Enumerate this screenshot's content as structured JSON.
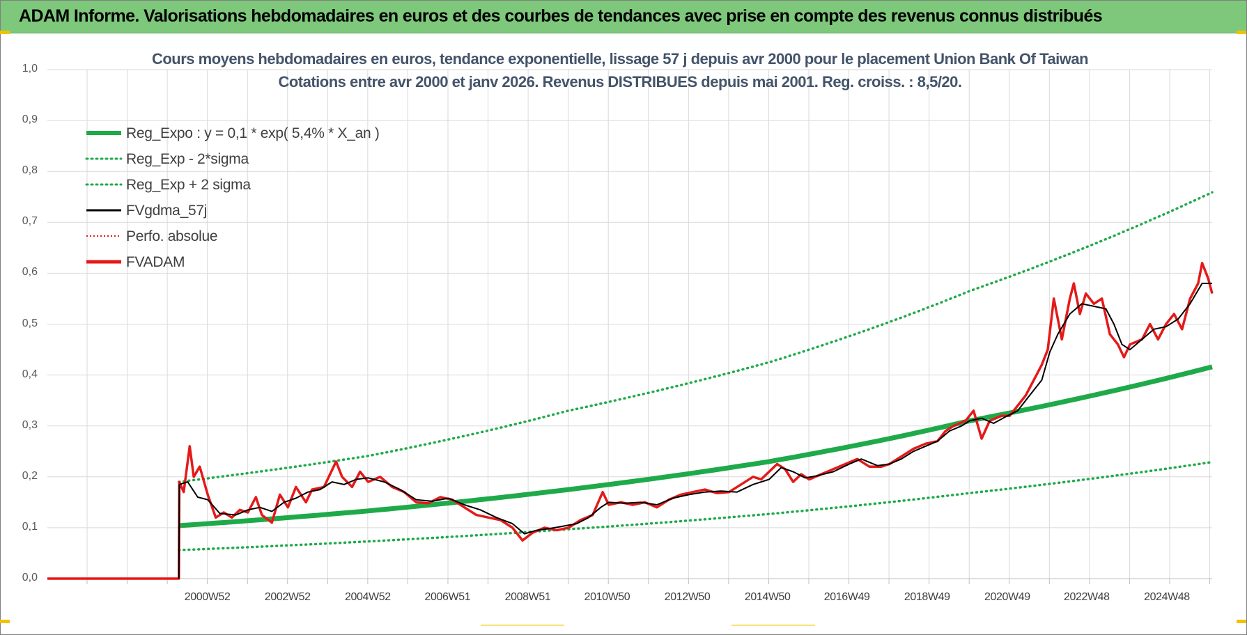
{
  "header": {
    "banner_text": "ADAM Informe. Valorisations hebdomadaires en euros et des courbes de tendances avec prise en compte des revenus connus distribués"
  },
  "colors": {
    "banner": "#7ec87c",
    "reg_expo": "#1faa4a",
    "sigma_bands": "#1faa4a",
    "fvgdma": "#000000",
    "perfo": "#e41a1a",
    "fvadam": "#e41a1a",
    "title": "#44546a"
  },
  "chart_data": {
    "type": "line",
    "title": "Cours moyens hebdomadaires en euros, tendance exponentielle, lissage 57 j depuis avr 2000 pour le placement Union Bank Of Taiwan",
    "subtitle": "Cotations entre avr 2000 et janv 2026. Revenus DISTRIBUES depuis mai 2001. Reg. croiss. : 8,5/20.",
    "xlabel": "",
    "ylabel": "",
    "x_range": [
      1997.0,
      2026.05
    ],
    "ylim": [
      0,
      1
    ],
    "y_ticks": [
      "0,0",
      "0,1",
      "0,2",
      "0,3",
      "0,4",
      "0,5",
      "0,6",
      "0,7",
      "0,8",
      "0,9",
      "1,0"
    ],
    "x_ticks": [
      {
        "label": "2000W52",
        "x": 2000.99
      },
      {
        "label": "2002W52",
        "x": 2002.99
      },
      {
        "label": "2004W52",
        "x": 2004.99
      },
      {
        "label": "2006W51",
        "x": 2006.98
      },
      {
        "label": "2008W51",
        "x": 2008.98
      },
      {
        "label": "2010W50",
        "x": 2010.96
      },
      {
        "label": "2012W50",
        "x": 2012.96
      },
      {
        "label": "2014W50",
        "x": 2014.96
      },
      {
        "label": "2016W49",
        "x": 2016.94
      },
      {
        "label": "2018W49",
        "x": 2018.94
      },
      {
        "label": "2020W49",
        "x": 2020.94
      },
      {
        "label": "2022W48",
        "x": 2022.92
      },
      {
        "label": "2024W48",
        "x": 2024.92
      }
    ],
    "grid": true,
    "legend_position": "top-left",
    "series": [
      {
        "name": "Reg_Expo : y = 0,1 * exp( 5,4% *  X_an )",
        "style": "solid-thick",
        "points": [
          [
            2000.28,
            0.104
          ],
          [
            2005,
            0.133
          ],
          [
            2010,
            0.175
          ],
          [
            2015,
            0.23
          ],
          [
            2020,
            0.31
          ],
          [
            2026.05,
            0.416
          ]
        ]
      },
      {
        "name": "Reg_Exp - 2*sigma",
        "style": "dotted",
        "points": [
          [
            2000.28,
            0.056
          ],
          [
            2005,
            0.073
          ],
          [
            2010,
            0.097
          ],
          [
            2015,
            0.127
          ],
          [
            2020,
            0.168
          ],
          [
            2026.05,
            0.229
          ]
        ]
      },
      {
        "name": "Reg_Exp + 2 sigma",
        "style": "dotted",
        "points": [
          [
            2000.28,
            0.19
          ],
          [
            2005,
            0.241
          ],
          [
            2010,
            0.33
          ],
          [
            2015,
            0.425
          ],
          [
            2020,
            0.565
          ],
          [
            2026.05,
            0.759
          ]
        ]
      },
      {
        "name": "FVgdma_57j",
        "style": "solid-thin",
        "points": [
          [
            2000.28,
            0.0
          ],
          [
            2000.29,
            0.185
          ],
          [
            2000.5,
            0.19
          ],
          [
            2000.75,
            0.16
          ],
          [
            2001.0,
            0.155
          ],
          [
            2001.3,
            0.128
          ],
          [
            2001.7,
            0.125
          ],
          [
            2002.0,
            0.135
          ],
          [
            2002.3,
            0.14
          ],
          [
            2002.6,
            0.132
          ],
          [
            2002.9,
            0.15
          ],
          [
            2003.2,
            0.158
          ],
          [
            2003.5,
            0.17
          ],
          [
            2003.8,
            0.175
          ],
          [
            2004.1,
            0.19
          ],
          [
            2004.4,
            0.185
          ],
          [
            2004.7,
            0.195
          ],
          [
            2005.0,
            0.198
          ],
          [
            2005.4,
            0.19
          ],
          [
            2005.8,
            0.175
          ],
          [
            2006.2,
            0.155
          ],
          [
            2006.6,
            0.152
          ],
          [
            2007.0,
            0.158
          ],
          [
            2007.4,
            0.145
          ],
          [
            2007.8,
            0.135
          ],
          [
            2008.2,
            0.12
          ],
          [
            2008.6,
            0.108
          ],
          [
            2008.9,
            0.088
          ],
          [
            2009.2,
            0.095
          ],
          [
            2009.5,
            0.098
          ],
          [
            2009.8,
            0.102
          ],
          [
            2010.2,
            0.108
          ],
          [
            2010.5,
            0.12
          ],
          [
            2010.8,
            0.14
          ],
          [
            2011.0,
            0.15
          ],
          [
            2011.4,
            0.148
          ],
          [
            2011.8,
            0.15
          ],
          [
            2012.2,
            0.145
          ],
          [
            2012.6,
            0.158
          ],
          [
            2013.0,
            0.165
          ],
          [
            2013.4,
            0.17
          ],
          [
            2013.8,
            0.172
          ],
          [
            2014.2,
            0.17
          ],
          [
            2014.6,
            0.185
          ],
          [
            2015.0,
            0.195
          ],
          [
            2015.3,
            0.218
          ],
          [
            2015.6,
            0.21
          ],
          [
            2015.9,
            0.198
          ],
          [
            2016.2,
            0.202
          ],
          [
            2016.6,
            0.21
          ],
          [
            2017.0,
            0.225
          ],
          [
            2017.3,
            0.235
          ],
          [
            2017.7,
            0.222
          ],
          [
            2018.0,
            0.225
          ],
          [
            2018.3,
            0.235
          ],
          [
            2018.6,
            0.25
          ],
          [
            2018.9,
            0.26
          ],
          [
            2019.2,
            0.27
          ],
          [
            2019.5,
            0.29
          ],
          [
            2019.8,
            0.3
          ],
          [
            2020.0,
            0.31
          ],
          [
            2020.3,
            0.315
          ],
          [
            2020.6,
            0.305
          ],
          [
            2020.9,
            0.318
          ],
          [
            2021.2,
            0.33
          ],
          [
            2021.5,
            0.36
          ],
          [
            2021.8,
            0.39
          ],
          [
            2022.0,
            0.445
          ],
          [
            2022.2,
            0.48
          ],
          [
            2022.5,
            0.52
          ],
          [
            2022.8,
            0.54
          ],
          [
            2023.1,
            0.535
          ],
          [
            2023.4,
            0.53
          ],
          [
            2023.6,
            0.5
          ],
          [
            2023.8,
            0.46
          ],
          [
            2024.0,
            0.45
          ],
          [
            2024.3,
            0.47
          ],
          [
            2024.6,
            0.49
          ],
          [
            2024.9,
            0.495
          ],
          [
            2025.2,
            0.51
          ],
          [
            2025.5,
            0.54
          ],
          [
            2025.8,
            0.58
          ],
          [
            2026.05,
            0.58
          ]
        ]
      },
      {
        "name": "Perfo. absolue",
        "style": "dotted",
        "points": []
      },
      {
        "name": "FVADAM",
        "style": "solid-thick",
        "points": [
          [
            1997.0,
            0.0
          ],
          [
            2000.28,
            0.0
          ],
          [
            2000.29,
            0.19
          ],
          [
            2000.4,
            0.17
          ],
          [
            2000.55,
            0.26
          ],
          [
            2000.65,
            0.2
          ],
          [
            2000.8,
            0.22
          ],
          [
            2001.0,
            0.165
          ],
          [
            2001.2,
            0.12
          ],
          [
            2001.4,
            0.13
          ],
          [
            2001.6,
            0.12
          ],
          [
            2001.8,
            0.135
          ],
          [
            2002.0,
            0.13
          ],
          [
            2002.2,
            0.16
          ],
          [
            2002.35,
            0.125
          ],
          [
            2002.6,
            0.11
          ],
          [
            2002.8,
            0.165
          ],
          [
            2003.0,
            0.14
          ],
          [
            2003.2,
            0.18
          ],
          [
            2003.45,
            0.15
          ],
          [
            2003.6,
            0.175
          ],
          [
            2003.9,
            0.18
          ],
          [
            2004.2,
            0.23
          ],
          [
            2004.35,
            0.2
          ],
          [
            2004.6,
            0.18
          ],
          [
            2004.8,
            0.21
          ],
          [
            2005.0,
            0.19
          ],
          [
            2005.3,
            0.2
          ],
          [
            2005.6,
            0.18
          ],
          [
            2005.9,
            0.17
          ],
          [
            2006.2,
            0.15
          ],
          [
            2006.5,
            0.148
          ],
          [
            2006.8,
            0.16
          ],
          [
            2007.1,
            0.155
          ],
          [
            2007.4,
            0.14
          ],
          [
            2007.7,
            0.125
          ],
          [
            2008.0,
            0.12
          ],
          [
            2008.3,
            0.115
          ],
          [
            2008.6,
            0.1
          ],
          [
            2008.85,
            0.075
          ],
          [
            2009.1,
            0.09
          ],
          [
            2009.4,
            0.1
          ],
          [
            2009.7,
            0.095
          ],
          [
            2010.0,
            0.1
          ],
          [
            2010.3,
            0.115
          ],
          [
            2010.6,
            0.125
          ],
          [
            2010.85,
            0.17
          ],
          [
            2011.0,
            0.145
          ],
          [
            2011.3,
            0.15
          ],
          [
            2011.6,
            0.145
          ],
          [
            2011.9,
            0.15
          ],
          [
            2012.2,
            0.14
          ],
          [
            2012.5,
            0.155
          ],
          [
            2012.8,
            0.165
          ],
          [
            2013.1,
            0.17
          ],
          [
            2013.4,
            0.175
          ],
          [
            2013.7,
            0.168
          ],
          [
            2014.0,
            0.17
          ],
          [
            2014.3,
            0.185
          ],
          [
            2014.6,
            0.2
          ],
          [
            2014.8,
            0.195
          ],
          [
            2015.0,
            0.21
          ],
          [
            2015.2,
            0.225
          ],
          [
            2015.4,
            0.215
          ],
          [
            2015.6,
            0.19
          ],
          [
            2015.8,
            0.205
          ],
          [
            2016.0,
            0.195
          ],
          [
            2016.3,
            0.205
          ],
          [
            2016.6,
            0.215
          ],
          [
            2016.9,
            0.225
          ],
          [
            2017.2,
            0.235
          ],
          [
            2017.5,
            0.22
          ],
          [
            2017.8,
            0.22
          ],
          [
            2018.0,
            0.225
          ],
          [
            2018.3,
            0.24
          ],
          [
            2018.6,
            0.255
          ],
          [
            2018.9,
            0.265
          ],
          [
            2019.2,
            0.27
          ],
          [
            2019.4,
            0.29
          ],
          [
            2019.6,
            0.3
          ],
          [
            2019.9,
            0.31
          ],
          [
            2020.1,
            0.33
          ],
          [
            2020.3,
            0.275
          ],
          [
            2020.5,
            0.31
          ],
          [
            2020.8,
            0.32
          ],
          [
            2021.0,
            0.32
          ],
          [
            2021.2,
            0.34
          ],
          [
            2021.4,
            0.36
          ],
          [
            2021.6,
            0.39
          ],
          [
            2021.8,
            0.42
          ],
          [
            2021.95,
            0.45
          ],
          [
            2022.1,
            0.55
          ],
          [
            2022.3,
            0.47
          ],
          [
            2022.5,
            0.55
          ],
          [
            2022.6,
            0.58
          ],
          [
            2022.75,
            0.52
          ],
          [
            2022.9,
            0.56
          ],
          [
            2023.1,
            0.54
          ],
          [
            2023.3,
            0.55
          ],
          [
            2023.5,
            0.48
          ],
          [
            2023.7,
            0.46
          ],
          [
            2023.85,
            0.435
          ],
          [
            2024.0,
            0.46
          ],
          [
            2024.3,
            0.47
          ],
          [
            2024.5,
            0.5
          ],
          [
            2024.7,
            0.47
          ],
          [
            2024.9,
            0.5
          ],
          [
            2025.1,
            0.52
          ],
          [
            2025.3,
            0.49
          ],
          [
            2025.5,
            0.55
          ],
          [
            2025.7,
            0.58
          ],
          [
            2025.8,
            0.62
          ],
          [
            2025.95,
            0.59
          ],
          [
            2026.05,
            0.56
          ]
        ]
      }
    ]
  }
}
